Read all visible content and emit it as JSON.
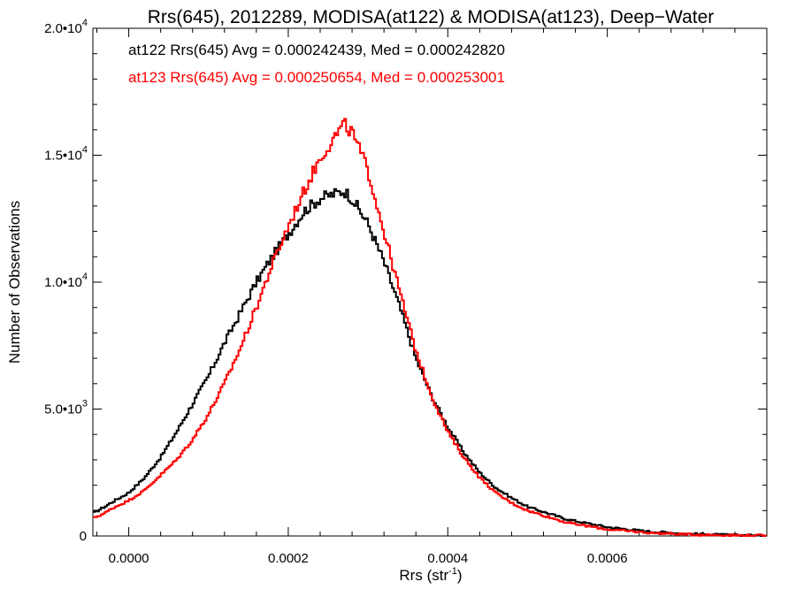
{
  "chart_data": {
    "type": "line",
    "title": "Rrs(645), 2012289, MODISA(at122) & MODISA(at123), Deep−Water",
    "xlabel": "Rrs (str",
    "xlabel_exp": "-1",
    "xlabel_close": ")",
    "ylabel": "Number of Observations",
    "xlim": [
      -4.5e-05,
      0.0008
    ],
    "ylim": [
      0,
      20000
    ],
    "x_ticks": [
      {
        "value": 0.0,
        "label": "0.0000"
      },
      {
        "value": 0.0002,
        "label": "0.0002"
      },
      {
        "value": 0.0004,
        "label": "0.0004"
      },
      {
        "value": 0.0006,
        "label": "0.0006"
      }
    ],
    "y_ticks": [
      {
        "value": 0,
        "mantissa": "0",
        "exp": ""
      },
      {
        "value": 5000,
        "mantissa": "5.0•10",
        "exp": "3"
      },
      {
        "value": 10000,
        "mantissa": "1.0•10",
        "exp": "4"
      },
      {
        "value": 15000,
        "mantissa": "1.5•10",
        "exp": "4"
      },
      {
        "value": 20000,
        "mantissa": "2.0•10",
        "exp": "4"
      }
    ],
    "grid": false,
    "legend_position": "top-left",
    "series": [
      {
        "label": "at122 Rrs(645) Avg = 0.000242439, Med = 0.000242820",
        "color": "#000000",
        "points": [
          [
            -4.5e-05,
            900
          ],
          [
            -3e-05,
            1150
          ],
          [
            -2e-05,
            1350
          ],
          [
            0.0,
            1700
          ],
          [
            2e-05,
            2300
          ],
          [
            4e-05,
            3100
          ],
          [
            6e-05,
            4100
          ],
          [
            8e-05,
            5200
          ],
          [
            0.0001,
            6300
          ],
          [
            0.00012,
            7600
          ],
          [
            0.00014,
            8800
          ],
          [
            0.00016,
            10000
          ],
          [
            0.00018,
            11000
          ],
          [
            0.0002,
            11900
          ],
          [
            0.00022,
            12800
          ],
          [
            0.00024,
            13300
          ],
          [
            0.00026,
            13500
          ],
          [
            0.00027,
            13600
          ],
          [
            0.00028,
            13300
          ],
          [
            0.0003,
            12300
          ],
          [
            0.00032,
            10800
          ],
          [
            0.00034,
            9000
          ],
          [
            0.00036,
            7000
          ],
          [
            0.00038,
            5500
          ],
          [
            0.0004,
            4300
          ],
          [
            0.00042,
            3300
          ],
          [
            0.00044,
            2500
          ],
          [
            0.00046,
            1900
          ],
          [
            0.00048,
            1500
          ],
          [
            0.0005,
            1150
          ],
          [
            0.00055,
            650
          ],
          [
            0.0006,
            350
          ],
          [
            0.00065,
            180
          ],
          [
            0.0007,
            90
          ],
          [
            0.00075,
            40
          ],
          [
            0.0008,
            20
          ]
        ]
      },
      {
        "label": "at123 Rrs(645) Avg = 0.000250654, Med = 0.000253001",
        "color": "#ff0000",
        "points": [
          [
            -4.5e-05,
            700
          ],
          [
            -3e-05,
            900
          ],
          [
            -2e-05,
            1100
          ],
          [
            0.0,
            1400
          ],
          [
            2e-05,
            1800
          ],
          [
            4e-05,
            2400
          ],
          [
            6e-05,
            3000
          ],
          [
            8e-05,
            3800
          ],
          [
            0.0001,
            4800
          ],
          [
            0.00012,
            6000
          ],
          [
            0.00014,
            7400
          ],
          [
            0.00016,
            9000
          ],
          [
            0.00018,
            10700
          ],
          [
            0.0002,
            12200
          ],
          [
            0.00022,
            13600
          ],
          [
            0.00024,
            14900
          ],
          [
            0.00026,
            15800
          ],
          [
            0.00027,
            16200
          ],
          [
            0.00028,
            15900
          ],
          [
            0.0003,
            14400
          ],
          [
            0.00032,
            12000
          ],
          [
            0.00034,
            9600
          ],
          [
            0.00036,
            7300
          ],
          [
            0.00038,
            5500
          ],
          [
            0.0004,
            4100
          ],
          [
            0.00042,
            3100
          ],
          [
            0.00044,
            2300
          ],
          [
            0.00046,
            1700
          ],
          [
            0.00048,
            1300
          ],
          [
            0.0005,
            1000
          ],
          [
            0.00055,
            520
          ],
          [
            0.0006,
            260
          ],
          [
            0.00065,
            130
          ],
          [
            0.0007,
            60
          ],
          [
            0.00075,
            30
          ],
          [
            0.0008,
            15
          ]
        ]
      }
    ]
  }
}
